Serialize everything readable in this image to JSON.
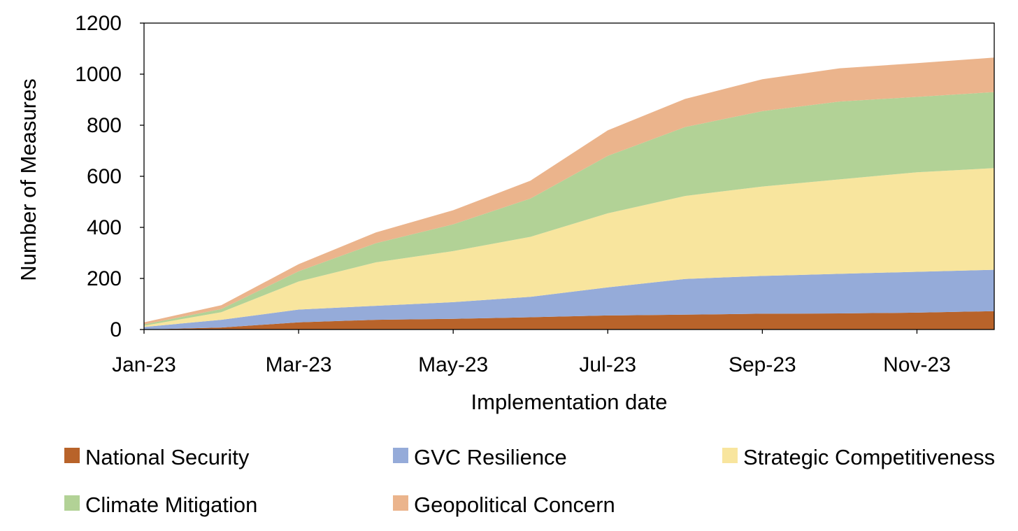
{
  "chart_data": {
    "type": "area",
    "stacked": true,
    "title": "",
    "xlabel": "Implementation date",
    "ylabel": "Number of Measures",
    "ylim": [
      0,
      1200
    ],
    "yticks": [
      "0",
      "200",
      "400",
      "600",
      "800",
      "1000",
      "1200"
    ],
    "ytick_values": [
      0,
      200,
      400,
      600,
      800,
      1000,
      1200
    ],
    "x": [
      "Jan-23",
      "Feb-23",
      "Mar-23",
      "Apr-23",
      "May-23",
      "Jun-23",
      "Jul-23",
      "Aug-23",
      "Sep-23",
      "Oct-23",
      "Nov-23",
      "Dec-23"
    ],
    "xtick_labels": [
      "Jan-23",
      "Mar-23",
      "May-23",
      "Jul-23",
      "Sep-23",
      "Nov-23"
    ],
    "xtick_index": [
      0,
      2,
      4,
      6,
      8,
      10
    ],
    "grid": false,
    "legend_position": "bottom",
    "series": [
      {
        "name": "National Security",
        "color": "#b8632a",
        "values": [
          0,
          8,
          28,
          38,
          42,
          48,
          55,
          58,
          62,
          63,
          66,
          72
        ]
      },
      {
        "name": "GVC Resilience",
        "color": "#95abd9",
        "values": [
          10,
          30,
          50,
          55,
          65,
          80,
          110,
          140,
          148,
          155,
          160,
          162
        ]
      },
      {
        "name": "Strategic Competitiveness",
        "color": "#f8e59e",
        "values": [
          5,
          30,
          110,
          170,
          200,
          235,
          290,
          325,
          350,
          370,
          390,
          398
        ]
      },
      {
        "name": "Climate Mitigation",
        "color": "#b2d296",
        "values": [
          5,
          12,
          40,
          75,
          105,
          150,
          225,
          270,
          295,
          305,
          295,
          298
        ]
      },
      {
        "name": "Geopolitical Concern",
        "color": "#ebb48c",
        "values": [
          8,
          15,
          28,
          42,
          55,
          70,
          100,
          110,
          125,
          130,
          132,
          135
        ]
      }
    ]
  }
}
